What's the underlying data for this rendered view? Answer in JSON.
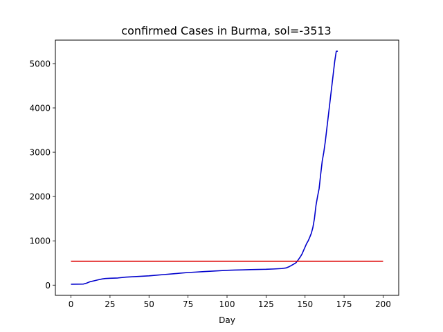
{
  "chart_data": {
    "type": "line",
    "title": "confirmed Cases in Burma, sol=-3513",
    "xlabel": "Day",
    "ylabel": "",
    "xlim": [
      -10,
      210
    ],
    "ylim": [
      -230,
      5530
    ],
    "xticks": [
      0,
      25,
      50,
      75,
      100,
      125,
      150,
      175,
      200
    ],
    "yticks": [
      0,
      1000,
      2000,
      3000,
      4000,
      5000
    ],
    "grid": false,
    "series": [
      {
        "color": "#0000cc",
        "x": [
          0,
          8,
          10,
          12,
          15,
          18,
          20,
          22,
          25,
          30,
          35,
          40,
          45,
          50,
          55,
          60,
          65,
          70,
          75,
          80,
          85,
          90,
          95,
          100,
          105,
          110,
          115,
          120,
          125,
          130,
          135,
          138,
          140,
          142,
          144,
          145,
          146,
          147,
          148,
          149,
          150,
          151,
          152,
          153,
          154,
          155,
          156,
          157,
          158,
          159,
          160,
          161,
          162,
          163,
          164,
          165,
          166,
          167,
          168,
          169,
          170,
          171
        ],
        "values": [
          20,
          25,
          45,
          75,
          100,
          125,
          140,
          150,
          155,
          162,
          180,
          190,
          200,
          210,
          225,
          240,
          255,
          270,
          285,
          295,
          305,
          315,
          325,
          335,
          340,
          345,
          350,
          355,
          358,
          365,
          375,
          390,
          420,
          460,
          500,
          540,
          590,
          640,
          700,
          780,
          860,
          940,
          1000,
          1080,
          1170,
          1300,
          1500,
          1800,
          2000,
          2180,
          2500,
          2800,
          3000,
          3250,
          3550,
          3850,
          4150,
          4450,
          4750,
          5050,
          5280,
          5280
        ]
      },
      {
        "color": "#dd0000",
        "x": [
          0,
          200
        ],
        "values": [
          540,
          540
        ]
      }
    ]
  }
}
